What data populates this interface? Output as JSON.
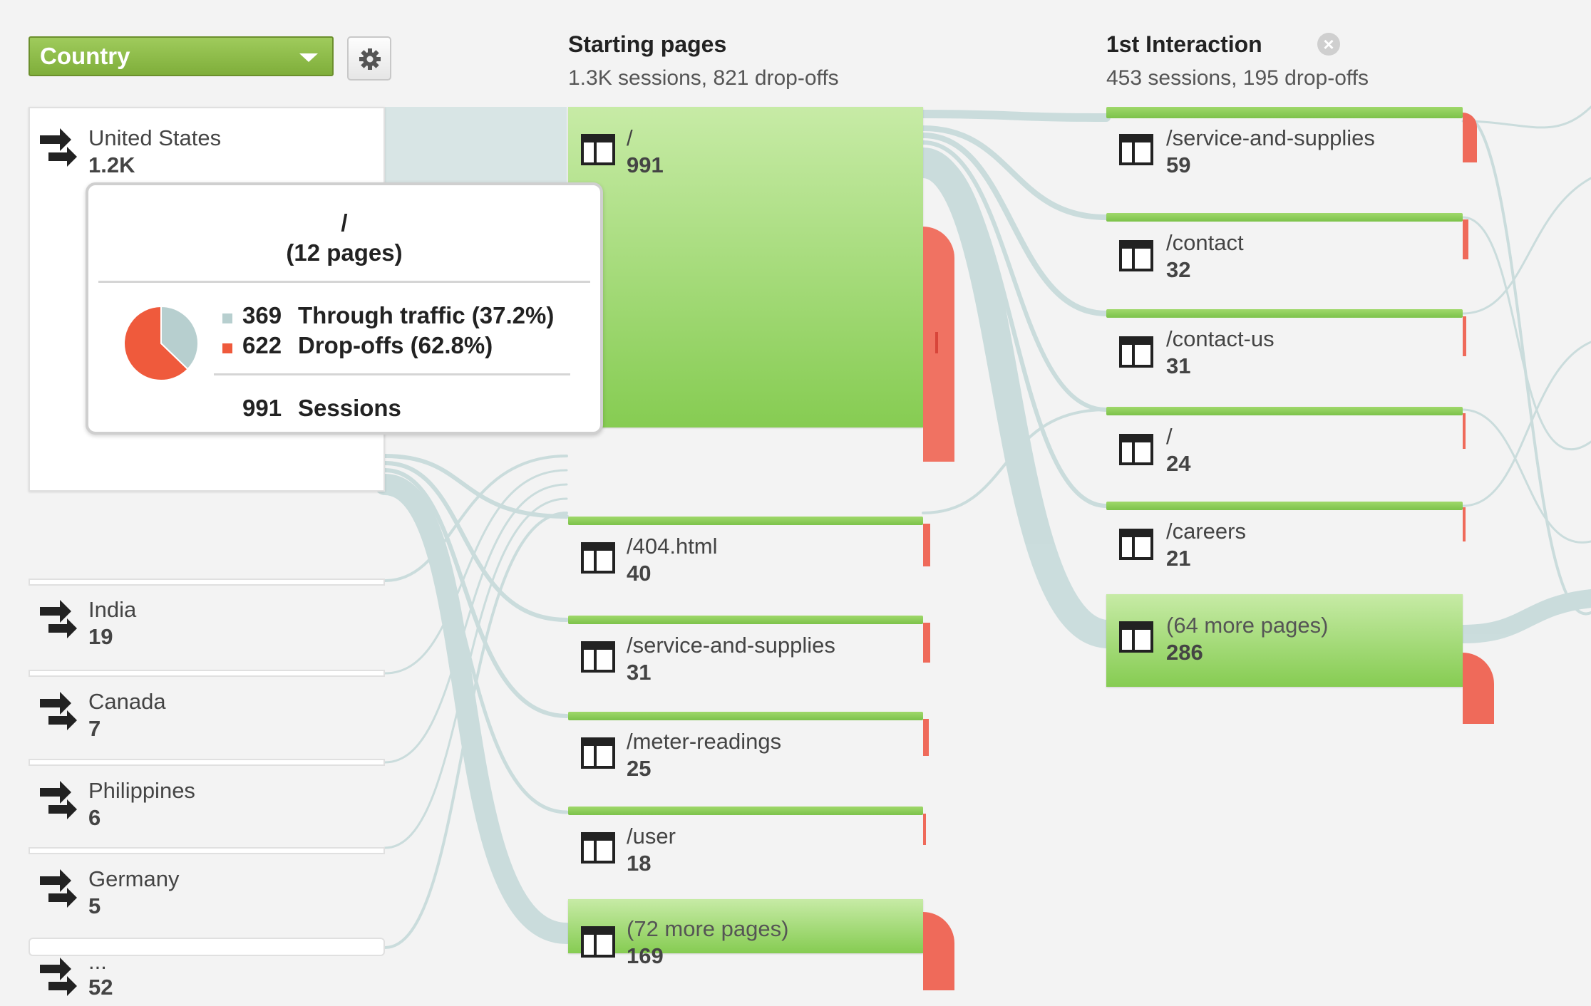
{
  "colors": {
    "accent_green": "#86cc52",
    "dropoff_red": "#ef6a5a",
    "flow": "#c9dbdb",
    "through_traffic": "#b7cfcf"
  },
  "dimension_selector": {
    "value": "Country",
    "icon": "chevron-down-icon"
  },
  "settings_button": {
    "icon": "gear-icon"
  },
  "columns": [
    {
      "title": "Starting pages",
      "subtitle": "1.3K sessions, 821 drop-offs"
    },
    {
      "title": "1st Interaction",
      "subtitle": "453 sessions, 195 drop-offs",
      "remove_icon": "close-icon"
    }
  ],
  "countries": [
    {
      "name": "United States",
      "value": "1.2K"
    },
    {
      "name": "India",
      "value": "19"
    },
    {
      "name": "Canada",
      "value": "7"
    },
    {
      "name": "Philippines",
      "value": "6"
    },
    {
      "name": "Germany",
      "value": "5"
    },
    {
      "name": "...",
      "value": "52"
    }
  ],
  "starting_pages": [
    {
      "name": "/",
      "value": "991"
    },
    {
      "name": "/404.html",
      "value": "40"
    },
    {
      "name": "/service-and-supplies",
      "value": "31"
    },
    {
      "name": "/meter-readings",
      "value": "25"
    },
    {
      "name": "/user",
      "value": "18"
    },
    {
      "name": "(72 more pages)",
      "value": "169"
    }
  ],
  "first_interaction": [
    {
      "name": "/service-and-supplies",
      "value": "59"
    },
    {
      "name": "/contact",
      "value": "32"
    },
    {
      "name": "/contact-us",
      "value": "31"
    },
    {
      "name": "/",
      "value": "24"
    },
    {
      "name": "/careers",
      "value": "21"
    },
    {
      "name": "(64 more pages)",
      "value": "286"
    }
  ],
  "tooltip": {
    "title": "/",
    "subtitle": "(12 pages)",
    "rows": [
      {
        "value": "369",
        "label": "Through traffic (37.2%)",
        "color": "#b7cfcf"
      },
      {
        "value": "622",
        "label": "Drop-offs (62.8%)",
        "color": "#ef5a3c"
      }
    ],
    "total_value": "991",
    "total_label": "Sessions",
    "pie": {
      "through": 369,
      "dropoff": 622
    }
  }
}
